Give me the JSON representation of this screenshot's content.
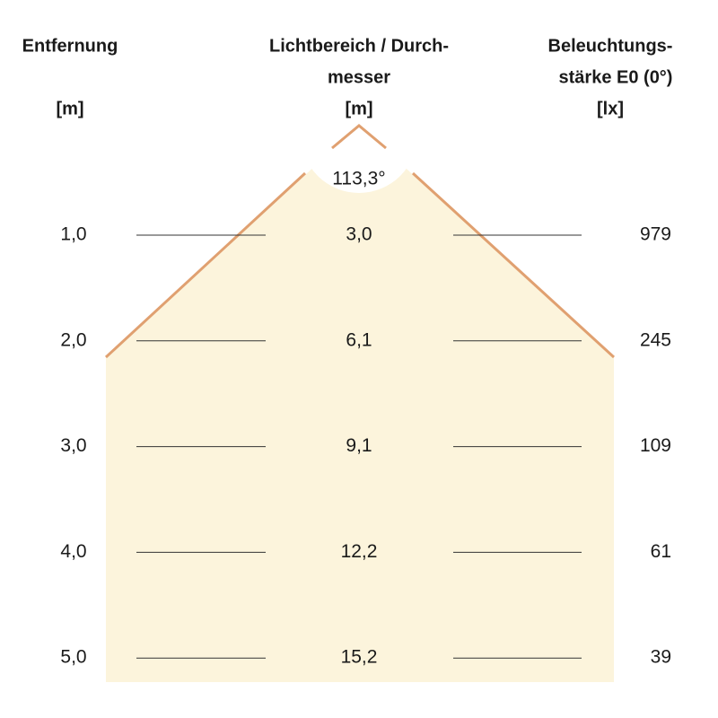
{
  "header": {
    "distance": [
      "Entfernung",
      "[m]"
    ],
    "diameter": [
      "Lichtbereich / Durch-",
      "messer",
      "[m]"
    ],
    "illuminance": [
      "Beleuchtungs-",
      "stärke E0 (0°)",
      "[lx]"
    ]
  },
  "angle": "113,3°",
  "rows": [
    [
      "1,0",
      "3,0",
      "979"
    ],
    [
      "2,0",
      "6,1",
      "245"
    ],
    [
      "3,0",
      "9,1",
      "109"
    ],
    [
      "4,0",
      "12,2",
      "61"
    ],
    [
      "5,0",
      "15,2",
      "39"
    ]
  ]
}
